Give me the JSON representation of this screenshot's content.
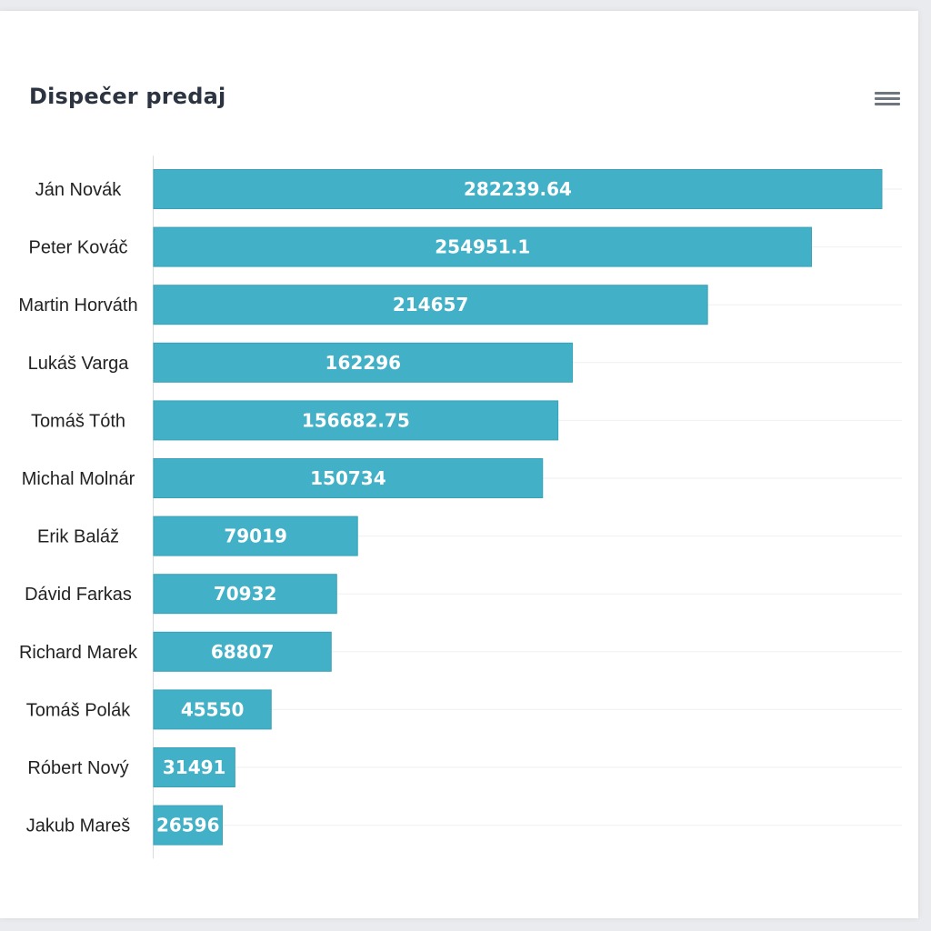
{
  "header": {
    "title": "Dispečer predaj",
    "menu_icon": "hamburger-menu-icon"
  },
  "colors": {
    "bar": "#42b0c6",
    "bar_border": "#3aa2b7",
    "grid": "#eef0f2",
    "axis": "#d8dce0"
  },
  "chart_data": {
    "type": "bar",
    "orientation": "horizontal",
    "title": "Dispečer predaj",
    "xlabel": "",
    "ylabel": "",
    "categories": [
      "Ján Novák",
      "Peter Kováč",
      "Martin Horváth",
      "Lukáš Varga",
      "Tomáš Tóth",
      "Michal Molnár",
      "Erik Baláž",
      "Dávid Farkas",
      "Richard Marek",
      "Tomáš Polák",
      "Róbert Nový",
      "Jakub Mareš"
    ],
    "values": [
      282239.64,
      254951.1,
      214657,
      162296,
      156682.75,
      150734,
      79019,
      70932,
      68807,
      45550,
      31491,
      26596
    ],
    "value_labels": [
      "282239.64",
      "254951.1",
      "214657",
      "162296",
      "156682.75",
      "150734",
      "79019",
      "70932",
      "68807",
      "45550",
      "31491",
      "26596"
    ],
    "xlim": [
      0,
      290000
    ],
    "grid": true,
    "legend": "none"
  }
}
